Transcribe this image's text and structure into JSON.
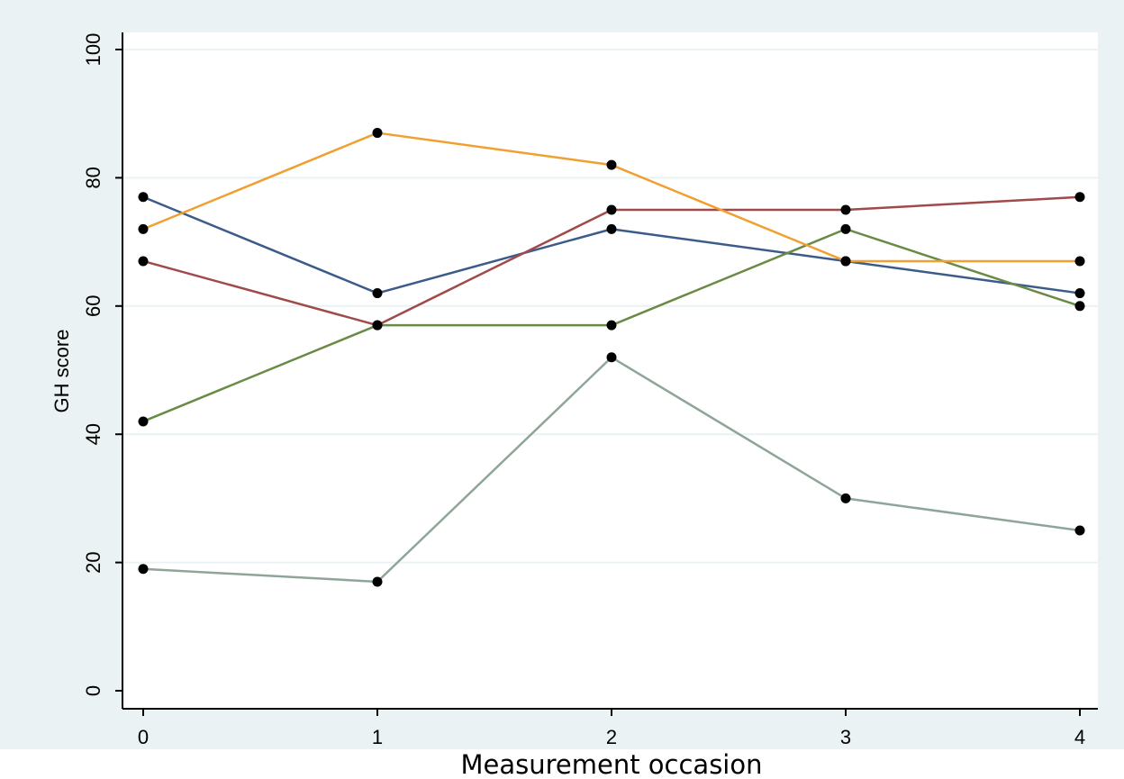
{
  "chart_data": {
    "type": "line",
    "title": "",
    "xlabel": "Measurement occasion",
    "ylabel": "GH score",
    "x": [
      0,
      1,
      2,
      3,
      4
    ],
    "x_tick_labels": [
      "0",
      "1",
      "2",
      "3",
      "4"
    ],
    "y_ticks": [
      0,
      20,
      40,
      60,
      80,
      100
    ],
    "y_tick_labels": [
      "0",
      "20",
      "40",
      "60",
      "80",
      "100"
    ],
    "xlim": [
      0,
      4
    ],
    "ylim": [
      0,
      100
    ],
    "grid": true,
    "legend": "none",
    "series": [
      {
        "color": "#3B5C8A",
        "values": [
          77,
          62,
          72,
          67,
          62
        ]
      },
      {
        "color": "#A04A4A",
        "values": [
          67,
          57,
          75,
          75,
          77
        ]
      },
      {
        "color": "#6A8A45",
        "values": [
          42,
          57,
          57,
          72,
          60
        ]
      },
      {
        "color": "#F0A030",
        "values": [
          72,
          87,
          82,
          67,
          67
        ]
      },
      {
        "color": "#8FA598",
        "values": [
          19,
          17,
          52,
          30,
          25
        ]
      }
    ],
    "colors": {
      "page_background": "#EAF2F3",
      "plot_background": "#FFFFFF",
      "gridline": "#EAF2F3",
      "marker": "#000000",
      "axis": "#000000"
    }
  }
}
